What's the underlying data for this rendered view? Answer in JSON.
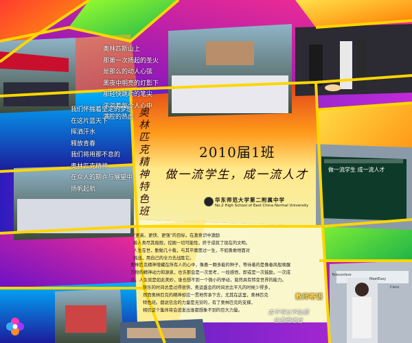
{
  "poem_top": [
    "奥林匹斯山上",
    "那第一次扬起的圣火",
    "是那么的动人心弦",
    "黑夜中明亮的灯影下",
    "那轻快跳动的笔尖",
    "洋溢着每个人心中",
    "满腔的热血"
  ],
  "poem_mid": [
    "我们怀揣着坚定的梦想",
    "在这片蓝天下",
    "挥洒汗水",
    "释放青春",
    "我们将用那不息的",
    "奥林匹克精神",
    "在众人的期许与展望中",
    "扬帆起航"
  ],
  "calligraphy": "奥林匹克精神特色班",
  "title": "2010届1班",
  "slogan": "做一流学生，成一流人才",
  "school": {
    "name_cn": "华东师范大学第二附属中学",
    "name_en": "No.2 High School of East China Normal University"
  },
  "paragraphs": [
    [
      "“更高、更快、更强”的目标，在激意识中激励",
      "着人类尽其极限，挖掘一切可能性，终于成就了现在的文明。",
      "人生在世，勤勉几十载，与其平庸度过一生，不如勇敢地面对",
      "挑战，用自己的全力去战胜它。"
    ],
    [
      "奥林匹克精神增藏在所有人的心中，像悬一颗多能的种子，等待着的是像春风般唤醒",
      "万物的精神动力和源泉，也许那会是一次思考，一段感悟，即或是一次鼓励，一次成",
      "功。人生就是如此美妙，谁也想不到一个微小的举动，竟然具有转变世界的能力。"
    ],
    [
      "快乐的时间总是过得很快，奥运盛会的时间总比平凡的时候少得多，",
      "然而奥林匹克的精神却应一贯地传承下去，尤其在这里，奥林匹克",
      "特色班。都说信念的力量是无穷的，有了奥林匹克的支撑，",
      "相信这个集体将会迸发出谁都想象不到的巨大力量。"
    ]
  ],
  "teacher": {
    "title": "教师寄语",
    "message": [
      "古不可以不弘毅",
      "任重而道远"
    ]
  },
  "photo_captions": {
    "blackboard": "做一流学生 成一流人才",
    "sign_a": "Teleconfere",
    "sign_b": "MeetEasy",
    "sign_c": "Cisco"
  },
  "colors": {
    "accent_yellow": "#ffd84a",
    "title_ink": "#111111"
  }
}
